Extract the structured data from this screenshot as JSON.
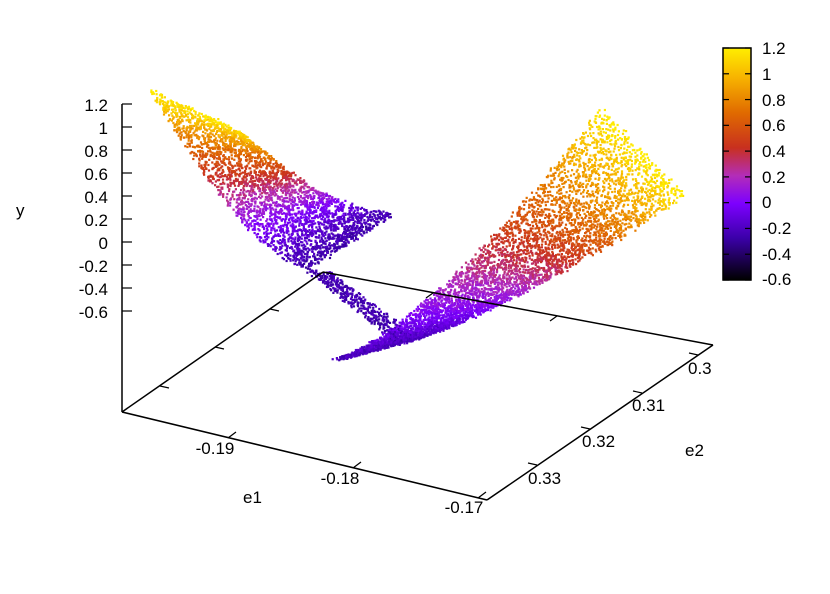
{
  "chart_data": {
    "type": "scatter",
    "subtype": "3d-surface-point-cloud",
    "title": "",
    "xlabel": "e1",
    "ylabel": "e2",
    "zlabel": "y",
    "xlim": [
      -0.195,
      -0.17
    ],
    "ylim": [
      0.3,
      0.335
    ],
    "zlim": [
      -0.6,
      1.2
    ],
    "x_ticks": [
      "-0.19",
      "-0.18",
      "-0.17"
    ],
    "y_ticks": [
      "0.3",
      "0.31",
      "0.32",
      "0.33"
    ],
    "z_ticks": [
      "1.2",
      "1",
      "0.8",
      "0.6",
      "0.4",
      "0.2",
      "0",
      "-0.2",
      "-0.4",
      "-0.6"
    ],
    "colorbar": {
      "range": [
        -0.6,
        1.2
      ],
      "ticks": [
        "1.2",
        "1",
        "0.8",
        "0.6",
        "0.4",
        "0.2",
        "0",
        "-0.2",
        "-0.4",
        "-0.6"
      ],
      "palette": [
        "#000000",
        "#3b00a8",
        "#7d00ff",
        "#b32db8",
        "#c8301f",
        "#e06a00",
        "#f7b200",
        "#ffee00"
      ]
    },
    "grid": false,
    "surface_description_values": {
      "shape": "parabolic trough along e1, minimum near y=-0.25",
      "min_y": -0.25,
      "max_y": 1.2
    }
  }
}
